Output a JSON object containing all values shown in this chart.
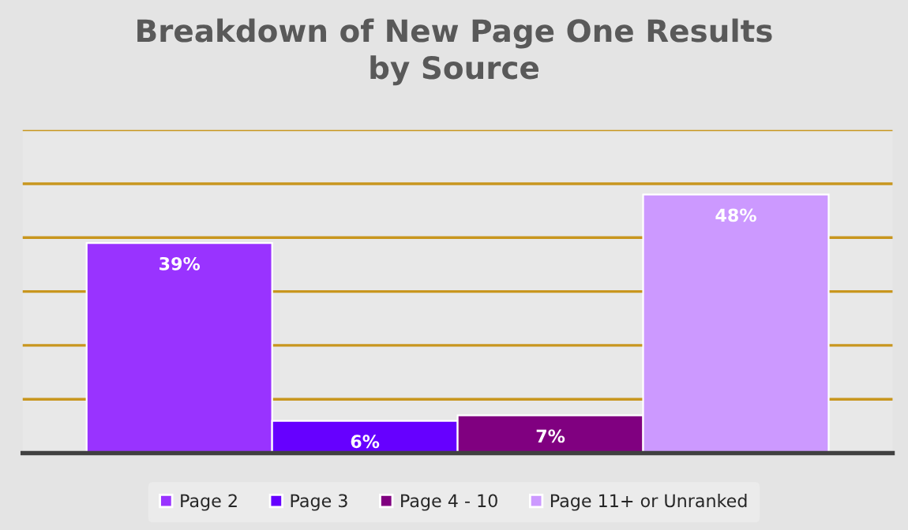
{
  "chart_data": {
    "type": "bar",
    "title": "Breakdown of New Page One Results\nby Source",
    "categories": [
      null
    ],
    "series": [
      {
        "name": "Page 2",
        "color": "#9933ff",
        "values": [
          39
        ],
        "value_labels": [
          "39%"
        ]
      },
      {
        "name": "Page 3",
        "color": "#6600ff",
        "values": [
          6
        ],
        "value_labels": [
          "6%"
        ]
      },
      {
        "name": "Page 4 - 10",
        "color": "#800080",
        "values": [
          7
        ],
        "value_labels": [
          "7%"
        ]
      },
      {
        "name": "Page 11+ or Unranked",
        "color": "#cc99ff",
        "values": [
          48
        ],
        "value_labels": [
          "48%"
        ]
      }
    ],
    "ylim": [
      0,
      60
    ],
    "yticks": [
      {
        "value": 0,
        "label": null
      },
      {
        "value": 10,
        "label": null
      },
      {
        "value": 20,
        "label": null
      },
      {
        "value": 30,
        "label": null
      },
      {
        "value": 40,
        "label": null
      },
      {
        "value": 50,
        "label": null
      },
      {
        "value": 60,
        "label": null
      }
    ],
    "grid": "y",
    "legend": "bottom"
  }
}
